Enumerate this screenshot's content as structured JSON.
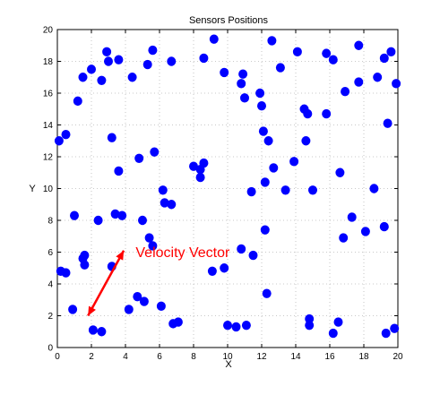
{
  "chart_data": {
    "type": "scatter",
    "title": "Sensors Positions",
    "xlabel": "X",
    "ylabel": "Y",
    "xlim": [
      0,
      20
    ],
    "ylim": [
      0,
      20
    ],
    "xticks": [
      0,
      2,
      4,
      6,
      8,
      10,
      12,
      14,
      16,
      18,
      20
    ],
    "yticks": [
      0,
      2,
      4,
      6,
      8,
      10,
      12,
      14,
      16,
      18,
      20
    ],
    "grid": true,
    "marker_color": "#0000ff",
    "series": [
      {
        "points": [
          [
            0.1,
            13.0
          ],
          [
            0.5,
            13.4
          ],
          [
            0.2,
            4.8
          ],
          [
            0.5,
            4.7
          ],
          [
            0.9,
            2.4
          ],
          [
            1.0,
            8.3
          ],
          [
            1.2,
            15.5
          ],
          [
            1.5,
            17.0
          ],
          [
            1.5,
            5.6
          ],
          [
            1.6,
            5.8
          ],
          [
            1.6,
            5.2
          ],
          [
            2.0,
            17.5
          ],
          [
            2.1,
            1.1
          ],
          [
            2.4,
            8.0
          ],
          [
            2.6,
            16.8
          ],
          [
            2.6,
            1.0
          ],
          [
            2.9,
            18.6
          ],
          [
            3.0,
            18.0
          ],
          [
            3.2,
            13.2
          ],
          [
            3.2,
            5.1
          ],
          [
            3.4,
            8.4
          ],
          [
            3.6,
            18.1
          ],
          [
            3.6,
            11.1
          ],
          [
            3.8,
            8.3
          ],
          [
            4.2,
            2.4
          ],
          [
            4.4,
            17.0
          ],
          [
            4.7,
            3.2
          ],
          [
            4.8,
            11.9
          ],
          [
            5.0,
            8.0
          ],
          [
            5.1,
            2.9
          ],
          [
            5.3,
            17.8
          ],
          [
            5.4,
            6.9
          ],
          [
            5.6,
            18.7
          ],
          [
            5.6,
            6.4
          ],
          [
            5.7,
            12.3
          ],
          [
            6.1,
            2.6
          ],
          [
            6.2,
            9.9
          ],
          [
            6.3,
            9.1
          ],
          [
            6.7,
            18.0
          ],
          [
            6.7,
            9.0
          ],
          [
            6.8,
            1.5
          ],
          [
            7.1,
            1.6
          ],
          [
            8.0,
            11.4
          ],
          [
            8.4,
            11.2
          ],
          [
            8.4,
            10.7
          ],
          [
            8.6,
            11.6
          ],
          [
            8.6,
            18.2
          ],
          [
            9.2,
            19.4
          ],
          [
            9.1,
            4.8
          ],
          [
            9.8,
            17.3
          ],
          [
            9.8,
            5.0
          ],
          [
            10.0,
            1.4
          ],
          [
            10.5,
            1.3
          ],
          [
            10.8,
            16.6
          ],
          [
            10.9,
            17.2
          ],
          [
            10.8,
            6.2
          ],
          [
            11.0,
            15.7
          ],
          [
            11.1,
            1.4
          ],
          [
            11.4,
            9.8
          ],
          [
            11.5,
            5.8
          ],
          [
            11.9,
            16.0
          ],
          [
            12.0,
            15.2
          ],
          [
            12.1,
            13.6
          ],
          [
            12.2,
            10.4
          ],
          [
            12.2,
            7.4
          ],
          [
            12.3,
            3.4
          ],
          [
            12.4,
            13.0
          ],
          [
            12.6,
            19.3
          ],
          [
            12.7,
            11.3
          ],
          [
            13.1,
            17.6
          ],
          [
            13.4,
            9.9
          ],
          [
            13.9,
            11.7
          ],
          [
            14.1,
            18.6
          ],
          [
            14.5,
            15.0
          ],
          [
            14.6,
            13.0
          ],
          [
            14.7,
            14.7
          ],
          [
            14.8,
            1.8
          ],
          [
            14.8,
            1.4
          ],
          [
            15.0,
            9.9
          ],
          [
            15.8,
            18.5
          ],
          [
            15.8,
            14.7
          ],
          [
            16.2,
            18.1
          ],
          [
            16.2,
            0.9
          ],
          [
            16.5,
            1.6
          ],
          [
            16.6,
            11.0
          ],
          [
            16.8,
            6.9
          ],
          [
            16.9,
            16.1
          ],
          [
            17.3,
            8.2
          ],
          [
            17.7,
            16.7
          ],
          [
            17.7,
            19.0
          ],
          [
            18.1,
            7.3
          ],
          [
            18.6,
            10.0
          ],
          [
            18.8,
            17.0
          ],
          [
            19.2,
            18.2
          ],
          [
            19.2,
            7.6
          ],
          [
            19.3,
            0.9
          ],
          [
            19.4,
            14.1
          ],
          [
            19.6,
            18.6
          ],
          [
            19.8,
            1.2
          ],
          [
            19.9,
            16.6
          ]
        ]
      }
    ],
    "annotation": {
      "text": "Velocity Vector",
      "color": "#ff0000",
      "arrow_from": [
        1.8,
        2.0
      ],
      "arrow_to": [
        3.9,
        6.1
      ],
      "text_at": [
        4.6,
        5.7
      ]
    }
  }
}
